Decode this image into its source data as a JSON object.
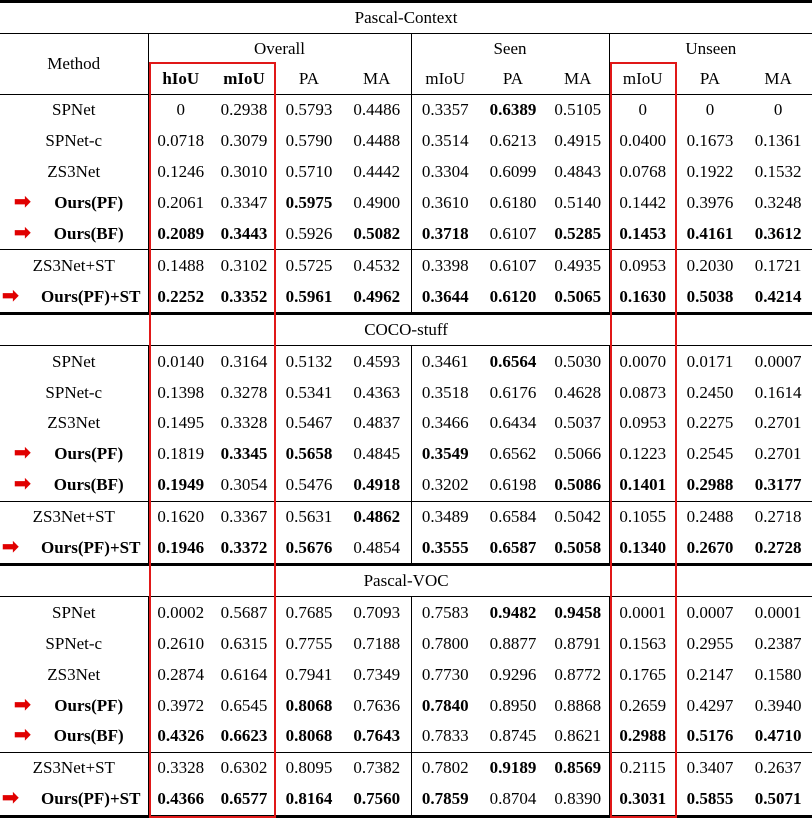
{
  "columns": {
    "method": "Method",
    "groups": [
      "Overall",
      "Seen",
      "Unseen"
    ],
    "sub": [
      "hIoU",
      "mIoU",
      "PA",
      "MA",
      "mIoU",
      "PA",
      "MA",
      "mIoU",
      "PA",
      "MA"
    ]
  },
  "sections": [
    {
      "title": "Pascal-Context",
      "rows": [
        {
          "method": "SPNet",
          "arrow": false,
          "values": [
            "0",
            "0.2938",
            "0.5793",
            "0.4486",
            "0.3357",
            "0.6389",
            "0.5105",
            "0",
            "0",
            "0"
          ],
          "bold": [
            5
          ]
        },
        {
          "method": "SPNet-c",
          "arrow": false,
          "values": [
            "0.0718",
            "0.3079",
            "0.5790",
            "0.4488",
            "0.3514",
            "0.6213",
            "0.4915",
            "0.0400",
            "0.1673",
            "0.1361"
          ],
          "bold": []
        },
        {
          "method": "ZS3Net",
          "arrow": false,
          "values": [
            "0.1246",
            "0.3010",
            "0.5710",
            "0.4442",
            "0.3304",
            "0.6099",
            "0.4843",
            "0.0768",
            "0.1922",
            "0.1532"
          ],
          "bold": []
        },
        {
          "method": "Ours(PF)",
          "arrow": true,
          "values": [
            "0.2061",
            "0.3347",
            "0.5975",
            "0.4900",
            "0.3610",
            "0.6180",
            "0.5140",
            "0.1442",
            "0.3976",
            "0.3248"
          ],
          "bold": [
            2
          ]
        },
        {
          "method": "Ours(BF)",
          "arrow": true,
          "values": [
            "0.2089",
            "0.3443",
            "0.5926",
            "0.5082",
            "0.3718",
            "0.6107",
            "0.5285",
            "0.1453",
            "0.4161",
            "0.3612"
          ],
          "bold": [
            0,
            1,
            3,
            4,
            6,
            7,
            8,
            9
          ]
        },
        {
          "method": "ZS3Net+ST",
          "arrow": false,
          "values": [
            "0.1488",
            "0.3102",
            "0.5725",
            "0.4532",
            "0.3398",
            "0.6107",
            "0.4935",
            "0.0953",
            "0.2030",
            "0.1721"
          ],
          "bold": [],
          "sep": true
        },
        {
          "method": "Ours(PF)+ST",
          "arrow": true,
          "values": [
            "0.2252",
            "0.3352",
            "0.5961",
            "0.4962",
            "0.3644",
            "0.6120",
            "0.5065",
            "0.1630",
            "0.5038",
            "0.4214"
          ],
          "bold": [
            0,
            1,
            2,
            3,
            4,
            5,
            6,
            7,
            8,
            9
          ]
        }
      ]
    },
    {
      "title": "COCO-stuff",
      "rows": [
        {
          "method": "SPNet",
          "arrow": false,
          "values": [
            "0.0140",
            "0.3164",
            "0.5132",
            "0.4593",
            "0.3461",
            "0.6564",
            "0.5030",
            "0.0070",
            "0.0171",
            "0.0007"
          ],
          "bold": [
            5
          ]
        },
        {
          "method": "SPNet-c",
          "arrow": false,
          "values": [
            "0.1398",
            "0.3278",
            "0.5341",
            "0.4363",
            "0.3518",
            "0.6176",
            "0.4628",
            "0.0873",
            "0.2450",
            "0.1614"
          ],
          "bold": []
        },
        {
          "method": "ZS3Net",
          "arrow": false,
          "values": [
            "0.1495",
            "0.3328",
            "0.5467",
            "0.4837",
            "0.3466",
            "0.6434",
            "0.5037",
            "0.0953",
            "0.2275",
            "0.2701"
          ],
          "bold": []
        },
        {
          "method": "Ours(PF)",
          "arrow": true,
          "values": [
            "0.1819",
            "0.3345",
            "0.5658",
            "0.4845",
            "0.3549",
            "0.6562",
            "0.5066",
            "0.1223",
            "0.2545",
            "0.2701"
          ],
          "bold": [
            1,
            2,
            4
          ]
        },
        {
          "method": "Ours(BF)",
          "arrow": true,
          "values": [
            "0.1949",
            "0.3054",
            "0.5476",
            "0.4918",
            "0.3202",
            "0.6198",
            "0.5086",
            "0.1401",
            "0.2988",
            "0.3177"
          ],
          "bold": [
            0,
            3,
            6,
            7,
            8,
            9
          ]
        },
        {
          "method": "ZS3Net+ST",
          "arrow": false,
          "values": [
            "0.1620",
            "0.3367",
            "0.5631",
            "0.4862",
            "0.3489",
            "0.6584",
            "0.5042",
            "0.1055",
            "0.2488",
            "0.2718"
          ],
          "bold": [
            3
          ],
          "sep": true
        },
        {
          "method": "Ours(PF)+ST",
          "arrow": true,
          "values": [
            "0.1946",
            "0.3372",
            "0.5676",
            "0.4854",
            "0.3555",
            "0.6587",
            "0.5058",
            "0.1340",
            "0.2670",
            "0.2728"
          ],
          "bold": [
            0,
            1,
            2,
            4,
            5,
            6,
            7,
            8,
            9
          ]
        }
      ]
    },
    {
      "title": "Pascal-VOC",
      "rows": [
        {
          "method": "SPNet",
          "arrow": false,
          "values": [
            "0.0002",
            "0.5687",
            "0.7685",
            "0.7093",
            "0.7583",
            "0.9482",
            "0.9458",
            "0.0001",
            "0.0007",
            "0.0001"
          ],
          "bold": [
            5,
            6
          ]
        },
        {
          "method": "SPNet-c",
          "arrow": false,
          "values": [
            "0.2610",
            "0.6315",
            "0.7755",
            "0.7188",
            "0.7800",
            "0.8877",
            "0.8791",
            "0.1563",
            "0.2955",
            "0.2387"
          ],
          "bold": []
        },
        {
          "method": "ZS3Net",
          "arrow": false,
          "values": [
            "0.2874",
            "0.6164",
            "0.7941",
            "0.7349",
            "0.7730",
            "0.9296",
            "0.8772",
            "0.1765",
            "0.2147",
            "0.1580"
          ],
          "bold": []
        },
        {
          "method": "Ours(PF)",
          "arrow": true,
          "values": [
            "0.3972",
            "0.6545",
            "0.8068",
            "0.7636",
            "0.7840",
            "0.8950",
            "0.8868",
            "0.2659",
            "0.4297",
            "0.3940"
          ],
          "bold": [
            2,
            4
          ]
        },
        {
          "method": "Ours(BF)",
          "arrow": true,
          "values": [
            "0.4326",
            "0.6623",
            "0.8068",
            "0.7643",
            "0.7833",
            "0.8745",
            "0.8621",
            "0.2988",
            "0.5176",
            "0.4710"
          ],
          "bold": [
            0,
            1,
            2,
            3,
            7,
            8,
            9
          ]
        },
        {
          "method": "ZS3Net+ST",
          "arrow": false,
          "values": [
            "0.3328",
            "0.6302",
            "0.8095",
            "0.7382",
            "0.7802",
            "0.9189",
            "0.8569",
            "0.2115",
            "0.3407",
            "0.2637"
          ],
          "bold": [
            5,
            6
          ],
          "sep": true
        },
        {
          "method": "Ours(PF)+ST",
          "arrow": true,
          "values": [
            "0.4366",
            "0.6577",
            "0.8164",
            "0.7560",
            "0.7859",
            "0.8704",
            "0.8390",
            "0.3031",
            "0.5855",
            "0.5071"
          ],
          "bold": [
            0,
            1,
            2,
            3,
            4,
            7,
            8,
            9
          ]
        }
      ]
    }
  ],
  "highlight_color": "#e01818",
  "arrow_color": "#e00000",
  "arrow_icon": "right-arrow-icon"
}
